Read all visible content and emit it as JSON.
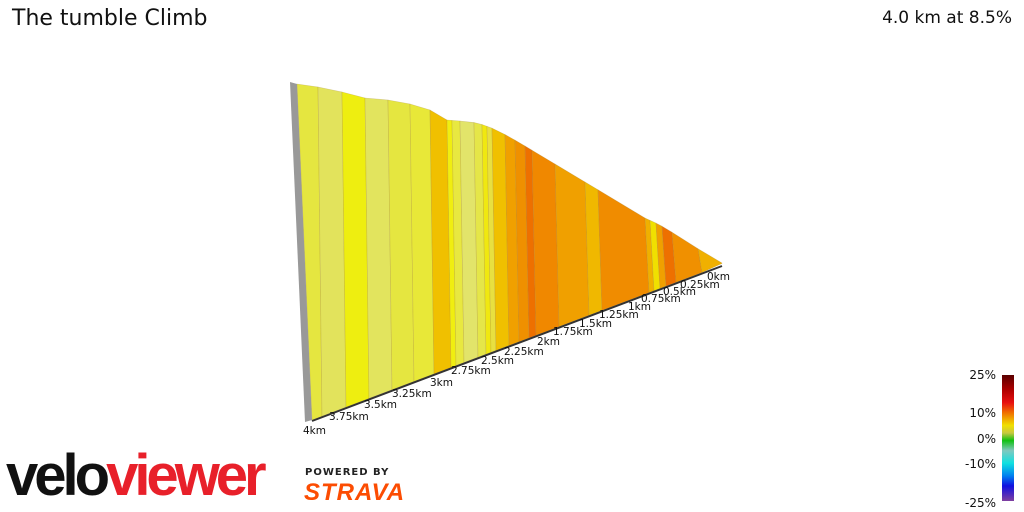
{
  "header": {
    "title": "The tumble Climb",
    "summary": "4.0 km at 8.5%"
  },
  "profile": {
    "axis_labels": [
      "0km",
      "0.25km",
      "0.5km",
      "0.75km",
      "1km",
      "1.25km",
      "1.5km",
      "1.75km",
      "2km",
      "2.25km",
      "2.5km",
      "2.75km",
      "3km",
      "3.25km",
      "3.5km",
      "3.75km",
      "4km"
    ],
    "segment_colors": [
      "#e5e640",
      "#e2e35c",
      "#eeee10",
      "#e2e45e",
      "#e5e640",
      "#e8e838",
      "#f0c000",
      "#f0ee10",
      "#e8e840",
      "#e2e46a",
      "#e5e648",
      "#f0e810",
      "#e8e040",
      "#f0c000",
      "#f0a000",
      "#ef9000",
      "#ee7000",
      "#f08800",
      "#f0a000",
      "#f0b800",
      "#f08c00",
      "#f0b000",
      "#f0e000",
      "#f0a000",
      "#ee7000",
      "#f09000",
      "#f0b000"
    ]
  },
  "legend": {
    "labels": [
      "25%",
      "10%",
      "0%",
      "-10%",
      "-25%"
    ]
  },
  "branding": {
    "logo_a": "velo",
    "logo_b": "viewer",
    "powered_by": "POWERED BY",
    "strava": "STRAVA",
    "strava_color": "#fc4c02"
  }
}
